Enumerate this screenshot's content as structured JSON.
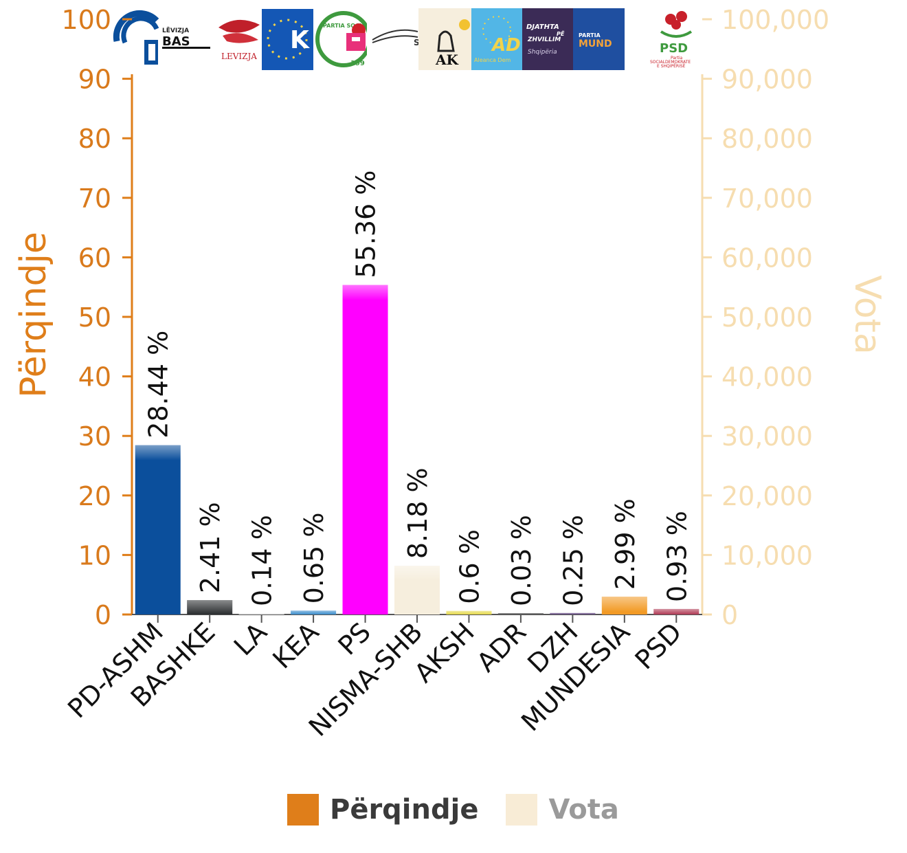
{
  "chart_data": {
    "type": "bar",
    "categories": [
      "PD-ASHM",
      "BASHKE",
      "LA",
      "KEA",
      "PS",
      "NISMA-SHB",
      "AKSH",
      "ADR",
      "DZH",
      "MUNDESIA",
      "PSD"
    ],
    "values": [
      28.44,
      2.41,
      0.14,
      0.65,
      55.36,
      8.18,
      0.6,
      0.03,
      0.25,
      2.99,
      0.93
    ],
    "data_labels": [
      "28.44 %",
      "2.41 %",
      "0.14 %",
      "0.65 %",
      "55.36 %",
      "8.18 %",
      "0.6 %",
      "0.03 %",
      "0.25 %",
      "2.99 %",
      "0.93 %"
    ],
    "bar_colors": [
      "#0B4F9C",
      "#2A2D2F",
      "#E9E9E9",
      "#3A8CCB",
      "#FF00FF",
      "#F6EEDD",
      "#E5D94A",
      "#4A4A4A",
      "#5A3E7A",
      "#F29A25",
      "#B03A55"
    ],
    "ylabel_left": "Përqindje",
    "ylabel_right": "Vota",
    "ylim_left": [
      0,
      100
    ],
    "ylim_right": [
      0,
      100000
    ],
    "yticks_left": [
      "0",
      "10",
      "20",
      "30",
      "40",
      "50",
      "60",
      "70",
      "80",
      "90",
      "100"
    ],
    "yticks_right": [
      "0",
      "10,000",
      "20,000",
      "30,000",
      "40,000",
      "50,000",
      "60,000",
      "70,000",
      "80,000",
      "90,000",
      "100,000"
    ],
    "legend": [
      {
        "label": "Përqindje",
        "color": "#DF7E1A",
        "text_color": "#3A3A3A"
      },
      {
        "label": "Vota",
        "color": "#F8ECD6",
        "text_color": "#9A9A9A"
      }
    ],
    "colors": {
      "left_axis": "#DF7E1A",
      "right_axis": "#F6DDB0"
    }
  },
  "logos": {
    "bashke": "BAS",
    "levizja_small": "LËVIZJA",
    "levizja_red": "LEVIZJA",
    "kea": "K",
    "ps_ring": "PARTIA SOCIALISTE",
    "ps_year": "199",
    "aksh": "AK",
    "adr": "AD",
    "adr_sub": "Aleanca Dem",
    "dzh_line1": "DJATHTA",
    "dzh_line2": "PË",
    "dzh_line3": "ZHVILLIM",
    "dzh_line4": "Shqipëria",
    "mundesia_small": "PARTIA",
    "mundesia": "MUND",
    "psd": "PSD",
    "psd_sub1": "Partia",
    "psd_sub2": "SOCIALDEMOKRATE",
    "psd_sub3": "E SHQIPËRISË"
  }
}
